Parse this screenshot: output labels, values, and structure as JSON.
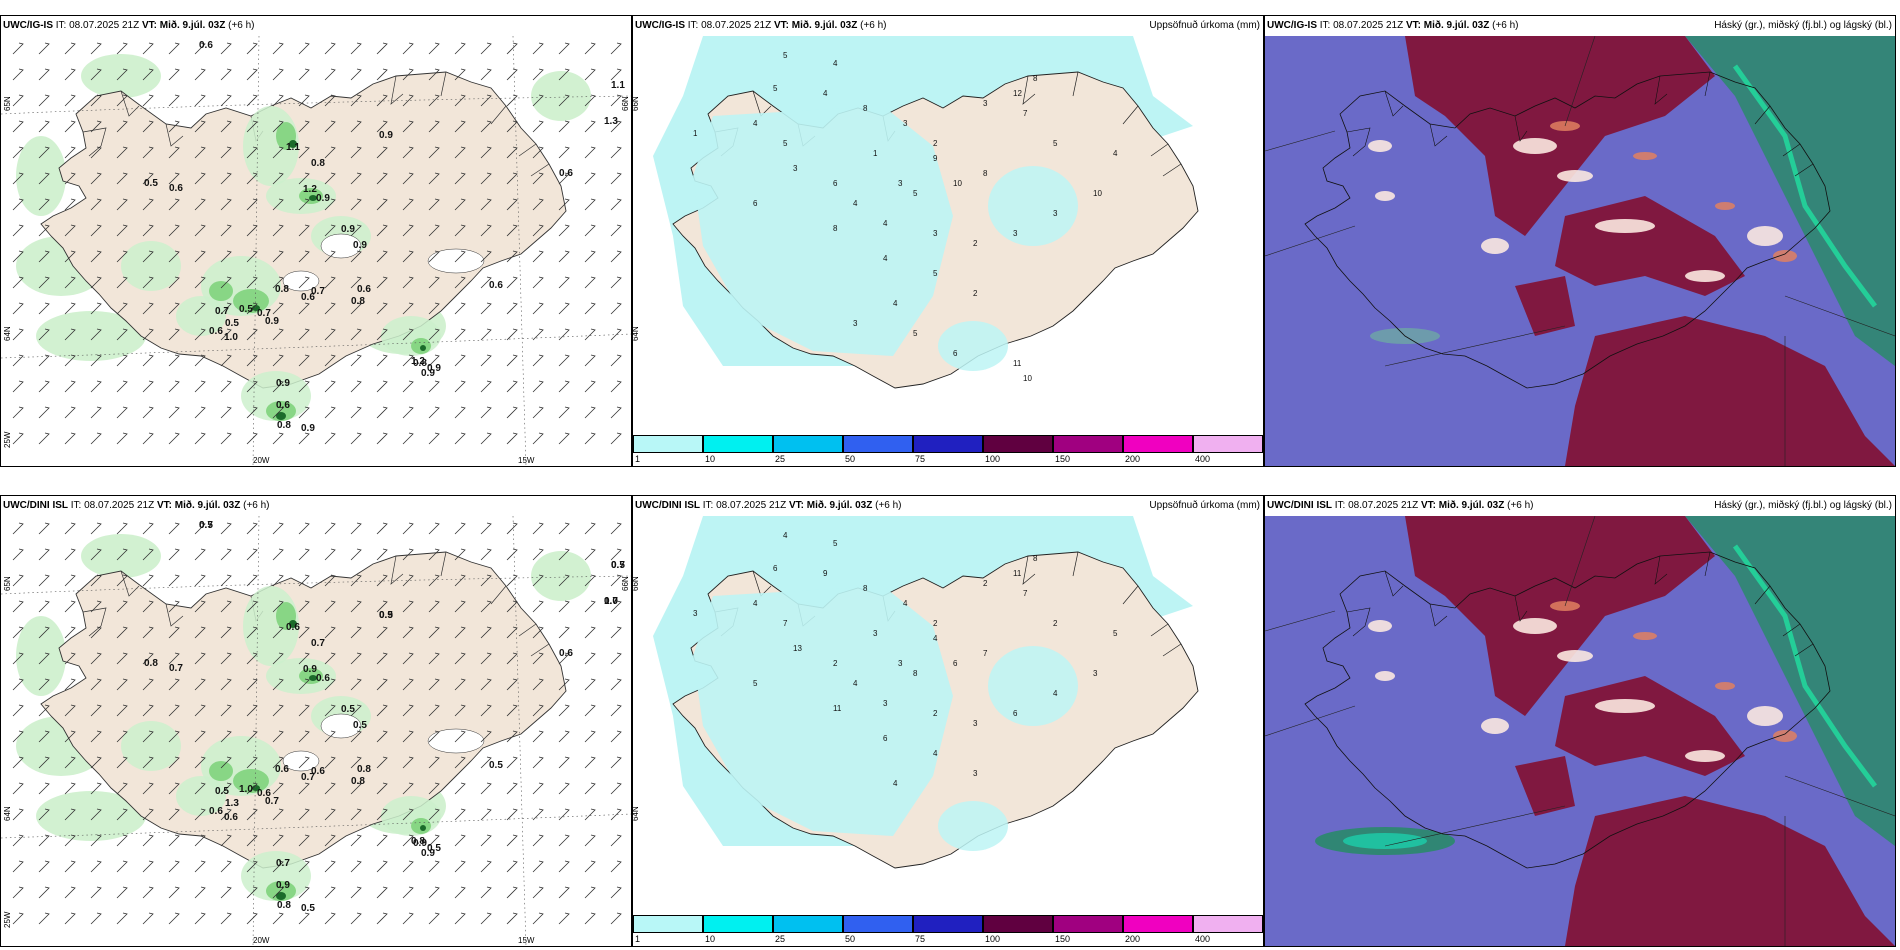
{
  "rows": [
    {
      "model": "UWC/IG-IS",
      "it_label": "IT:",
      "it_value": "08.07.2025 21Z",
      "vt_label": "VT:",
      "vt_value": "Mið. 9.júl. 03Z",
      "lead": "(+6 h)",
      "wind_labels": [
        "0.6",
        "0.9",
        "1.1",
        "1.3",
        "1.1",
        "0.8",
        "1.2",
        "0.9",
        "0.9",
        "0.9",
        "0.5",
        "0.6",
        "0.6",
        "0.6",
        "0.7",
        "0.5",
        "0.6",
        "0.5",
        "0.7",
        "0.9",
        "1.0",
        "0.8",
        "0.6",
        "0.7",
        "0.6",
        "0.8",
        "0.8",
        "0.9",
        "0.9",
        "0.6",
        "0.8",
        "0.9",
        "1.2",
        "0.9"
      ],
      "precip_labels": [
        "5",
        "4",
        "5",
        "4",
        "1",
        "5",
        "4",
        "8",
        "3",
        "2",
        "1",
        "3",
        "6",
        "3",
        "9",
        "10",
        "8",
        "5",
        "4",
        "6",
        "8",
        "4",
        "3",
        "2",
        "3",
        "3",
        "10",
        "4",
        "5",
        "7",
        "3",
        "12",
        "8",
        "4",
        "5",
        "2",
        "4",
        "3",
        "5",
        "6",
        "11",
        "10"
      ]
    },
    {
      "model": "UWC/DINI ISL",
      "it_label": "IT:",
      "it_value": "08.07.2025 21Z",
      "vt_label": "VT:",
      "vt_value": "Mið. 9.júl. 03Z",
      "lead": "(+6 h)",
      "wind_labels": [
        "0.7",
        "0.5",
        "0.5",
        "0.7",
        "0.6",
        "0.7",
        "0.9",
        "0.6",
        "0.5",
        "0.5",
        "0.8",
        "0.7",
        "0.6",
        "0.5",
        "0.5",
        "1.3",
        "0.6",
        "1.0",
        "0.6",
        "0.7",
        "0.6",
        "0.6",
        "0.7",
        "0.6",
        "0.8",
        "0.8",
        "0.9",
        "0.5",
        "0.7",
        "0.9",
        "0.8",
        "0.5",
        "0.8",
        "0.9",
        "0.5",
        "0.9",
        "0.7",
        "1.0"
      ],
      "precip_labels": [
        "4",
        "5",
        "6",
        "4",
        "3",
        "7",
        "9",
        "8",
        "4",
        "2",
        "3",
        "13",
        "2",
        "3",
        "4",
        "6",
        "7",
        "8",
        "4",
        "5",
        "11",
        "3",
        "2",
        "3",
        "6",
        "4",
        "3",
        "5",
        "2",
        "7",
        "2",
        "11",
        "8",
        "6",
        "4",
        "3",
        "4"
      ]
    }
  ],
  "precip_title": "Uppsöfnuð úrkoma (mm)",
  "cloud_title": "Háský (gr.), miðský (fj.bl.) og lágský (bl.)",
  "axes": {
    "lat_label": "65N",
    "lat_label2": "64N",
    "lon_25": "25W",
    "lon_20": "20W",
    "lon_15": "15W",
    "lat_right": "66N",
    "lat_right2": "64N"
  },
  "colorbar": {
    "labels": [
      "1",
      "10",
      "25",
      "50",
      "75",
      "100",
      "150",
      "200",
      "400"
    ],
    "colors": [
      "#b8f7f7",
      "#00f0f0",
      "#00c0f0",
      "#3060f0",
      "#2020c0",
      "#600040",
      "#a00080",
      "#f000c0",
      "#f0b0f0"
    ]
  },
  "colors": {
    "land": "#f2e6d9",
    "precip_land": "#bdf4f4",
    "cloud_low": "#6a6ac8",
    "cloud_mid": "#801840",
    "cloud_high": "#2a8a6a",
    "green_light": "#cdf0cc",
    "green_mid": "#7fd37c",
    "green_dark": "#1b6b2a"
  }
}
